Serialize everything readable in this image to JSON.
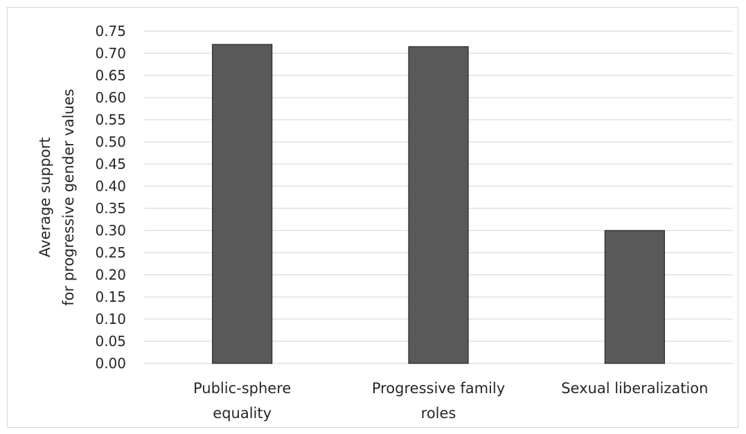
{
  "chart_data": {
    "type": "bar",
    "categories": [
      "Public-sphere equality",
      "Progressive family roles",
      "Sexual liberalization"
    ],
    "category_lines": [
      [
        "Public-sphere",
        "equality"
      ],
      [
        "Progressive family",
        "roles"
      ],
      [
        "Sexual liberalization"
      ]
    ],
    "values": [
      0.72,
      0.715,
      0.3
    ],
    "ylabel_lines": [
      "Average support",
      "for progressive gender values"
    ],
    "ylim": [
      0,
      0.75
    ],
    "yticks": [
      "0.00",
      "0.05",
      "0.10",
      "0.15",
      "0.20",
      "0.25",
      "0.30",
      "0.35",
      "0.40",
      "0.45",
      "0.50",
      "0.55",
      "0.60",
      "0.65",
      "0.70",
      "0.75"
    ],
    "grid": true,
    "colors": {
      "bar_fill": "#595959",
      "bar_stroke": "#262626",
      "grid": "#d9d9d9",
      "text": "#262626"
    }
  }
}
